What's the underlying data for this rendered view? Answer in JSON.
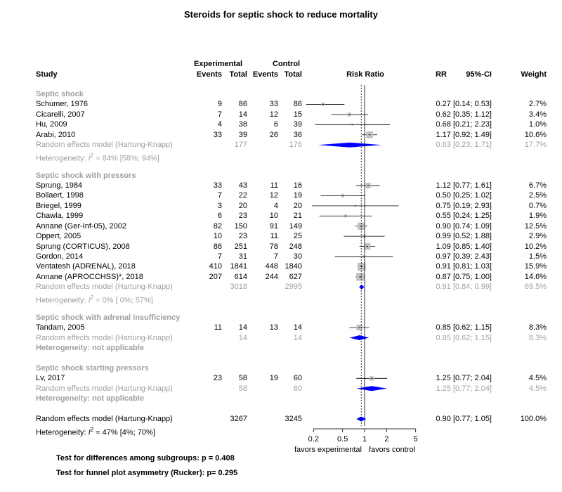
{
  "chart_data": {
    "type": "forest",
    "title": "Steroids for septic shock to reduce mortality",
    "scale": "log",
    "xlim": [
      0.1,
      5
    ],
    "null_value": 1,
    "pooled_value": 0.9,
    "x_ticks": [
      "0.2",
      "0.5",
      "1",
      "2",
      "5"
    ],
    "x_tick_values": [
      0.2,
      0.5,
      1,
      2,
      5
    ],
    "favors_left": "favors experimental",
    "favors_right": "favors control",
    "header": {
      "experimental": "Experimental",
      "control": "Control",
      "study": "Study",
      "events": "Events",
      "total": "Total",
      "risk_ratio": "Risk Ratio",
      "rr": "RR",
      "ci": "95%-CI",
      "weight": "Weight"
    },
    "rows": [
      {
        "kind": "group",
        "label": "Septic shock"
      },
      {
        "kind": "study",
        "label": "Schumer, 1976",
        "ee": "9",
        "et": "86",
        "ce": "33",
        "ct": "86",
        "rr": 0.27,
        "lo": 0.14,
        "hi": 0.53,
        "ci": "0.27 [0.14; 0.53]",
        "w": "2.7%",
        "wv": 2.7
      },
      {
        "kind": "study",
        "label": "Cicarelli, 2007",
        "ee": "7",
        "et": "14",
        "ce": "12",
        "ct": "15",
        "rr": 0.62,
        "lo": 0.35,
        "hi": 1.12,
        "ci": "0.62 [0.35; 1.12]",
        "w": "3.4%",
        "wv": 3.4
      },
      {
        "kind": "study",
        "label": "Hu, 2009",
        "ee": "4",
        "et": "38",
        "ce": "6",
        "ct": "39",
        "rr": 0.68,
        "lo": 0.21,
        "hi": 2.23,
        "ci": "0.68 [0.21; 2.23]",
        "w": "1.0%",
        "wv": 1.0
      },
      {
        "kind": "study",
        "label": "Arabi, 2010",
        "ee": "33",
        "et": "39",
        "ce": "26",
        "ct": "36",
        "rr": 1.17,
        "lo": 0.92,
        "hi": 1.49,
        "ci": "1.17 [0.92; 1.49]",
        "w": "10.6%",
        "wv": 10.6
      },
      {
        "kind": "pooled",
        "label": "Random effects model  (Hartung-Knapp)",
        "et": "177",
        "ct": "176",
        "rr": 0.63,
        "lo": 0.23,
        "hi": 1.71,
        "ci": "0.63 [0.23; 1.71]",
        "w": "17.7%"
      },
      {
        "kind": "het",
        "text_before": "Heterogeneity: ",
        "italic": "I",
        "sup": "2",
        "text_after": " = 84% [58%; 94%]"
      },
      {
        "kind": "blank"
      },
      {
        "kind": "group",
        "label": "Septic shock with pressors"
      },
      {
        "kind": "study",
        "label": "Sprung, 1984",
        "ee": "33",
        "et": "43",
        "ce": "11",
        "ct": "16",
        "rr": 1.12,
        "lo": 0.77,
        "hi": 1.61,
        "ci": "1.12 [0.77; 1.61]",
        "w": "6.7%",
        "wv": 6.7
      },
      {
        "kind": "study",
        "label": "Bollaert, 1998",
        "ee": "7",
        "et": "22",
        "ce": "12",
        "ct": "19",
        "rr": 0.5,
        "lo": 0.25,
        "hi": 1.02,
        "ci": "0.50 [0.25; 1.02]",
        "w": "2.5%",
        "wv": 2.5
      },
      {
        "kind": "study",
        "label": "Briegel, 1999",
        "ee": "3",
        "et": "20",
        "ce": "4",
        "ct": "20",
        "rr": 0.75,
        "lo": 0.19,
        "hi": 2.93,
        "ci": "0.75 [0.19; 2.93]",
        "w": "0.7%",
        "wv": 0.7
      },
      {
        "kind": "study",
        "label": "Chawla, 1999",
        "ee": "6",
        "et": "23",
        "ce": "10",
        "ct": "21",
        "rr": 0.55,
        "lo": 0.24,
        "hi": 1.25,
        "ci": "0.55 [0.24; 1.25]",
        "w": "1.9%",
        "wv": 1.9
      },
      {
        "kind": "study",
        "label": "Annane (Ger-Inf-05), 2002",
        "ee": "82",
        "et": "150",
        "ce": "91",
        "ct": "149",
        "rr": 0.9,
        "lo": 0.74,
        "hi": 1.09,
        "ci": "0.90 [0.74; 1.09]",
        "w": "12.5%",
        "wv": 12.5
      },
      {
        "kind": "study",
        "label": "Oppert, 2005",
        "ee": "10",
        "et": "23",
        "ce": "11",
        "ct": "25",
        "rr": 0.99,
        "lo": 0.52,
        "hi": 1.88,
        "ci": "0.99 [0.52; 1.88]",
        "w": "2.9%",
        "wv": 2.9
      },
      {
        "kind": "study",
        "label": "Sprung (CORTICUS), 2008",
        "ee": "86",
        "et": "251",
        "ce": "78",
        "ct": "248",
        "rr": 1.09,
        "lo": 0.85,
        "hi": 1.4,
        "ci": "1.09 [0.85; 1.40]",
        "w": "10.2%",
        "wv": 10.2
      },
      {
        "kind": "study",
        "label": "Gordon, 2014",
        "ee": "7",
        "et": "31",
        "ce": "7",
        "ct": "30",
        "rr": 0.97,
        "lo": 0.39,
        "hi": 2.43,
        "ci": "0.97 [0.39; 2.43]",
        "w": "1.5%",
        "wv": 1.5
      },
      {
        "kind": "study",
        "label": "Ventatesh  (ADRENAL), 2018",
        "ee": "410",
        "et": "1841",
        "ce": "448",
        "ct": "1840",
        "rr": 0.91,
        "lo": 0.81,
        "hi": 1.03,
        "ci": "0.91 [0.81; 1.03]",
        "w": "15.9%",
        "wv": 15.9
      },
      {
        "kind": "study",
        "label": "Annane (APROCCHSS)*, 2018",
        "ee": "207",
        "et": "614",
        "ce": "244",
        "ct": "627",
        "rr": 0.87,
        "lo": 0.75,
        "hi": 1.0,
        "ci": "0.87 [0.75; 1.00]",
        "w": "14.6%",
        "wv": 14.6
      },
      {
        "kind": "pooled",
        "label": "Random effects model  (Hartung-Knapp)",
        "et": "3018",
        "ct": "2995",
        "rr": 0.91,
        "lo": 0.84,
        "hi": 0.99,
        "ci": "0.91 [0.84; 0.99]",
        "w": "69.5%"
      },
      {
        "kind": "het",
        "text_before": "Heterogeneity: ",
        "italic": "I",
        "sup": "2",
        "text_after": " = 0% [ 0%; 57%]"
      },
      {
        "kind": "blank"
      },
      {
        "kind": "group",
        "label": "Septic shock with adrenal insufficiency"
      },
      {
        "kind": "study",
        "label": "Tandam, 2005",
        "ee": "11",
        "et": "14",
        "ce": "13",
        "ct": "14",
        "rr": 0.85,
        "lo": 0.62,
        "hi": 1.15,
        "ci": "0.85 [0.62; 1.15]",
        "w": "8.3%",
        "wv": 8.3
      },
      {
        "kind": "pooled",
        "label": "Random effects model  (Hartung-Knapp)",
        "et": "14",
        "ct": "14",
        "rr": 0.85,
        "lo": 0.62,
        "hi": 1.15,
        "ci": "0.85 [0.62; 1.15]",
        "w": "8.3%"
      },
      {
        "kind": "hetna",
        "label": "Heterogeneity: not applicable"
      },
      {
        "kind": "blank"
      },
      {
        "kind": "group",
        "label": "Septic shock starting pressors"
      },
      {
        "kind": "study",
        "label": "Lv, 2017",
        "ee": "23",
        "et": "58",
        "ce": "19",
        "ct": "60",
        "rr": 1.25,
        "lo": 0.77,
        "hi": 2.04,
        "ci": "1.25 [0.77; 2.04]",
        "w": "4.5%",
        "wv": 4.5
      },
      {
        "kind": "pooled",
        "label": "Random effects model  (Hartung-Knapp)",
        "et": "58",
        "ct": "60",
        "rr": 1.25,
        "lo": 0.77,
        "hi": 2.04,
        "ci": "1.25 [0.77; 2.04]",
        "w": "4.5%"
      },
      {
        "kind": "hetna",
        "label": "Heterogeneity: not applicable"
      },
      {
        "kind": "blank"
      },
      {
        "kind": "overall",
        "label": "Random effects model  (Hartung-Knapp)",
        "et": "3267",
        "ct": "3245",
        "rr": 0.9,
        "lo": 0.77,
        "hi": 1.05,
        "ci": "0.90 [0.77; 1.05]",
        "w": "100.0%"
      },
      {
        "kind": "hetoverall",
        "text_before": "Heterogeneity: ",
        "italic": "I",
        "sup": "2",
        "text_after": " = 47% [4%; 70%]"
      }
    ],
    "footer": [
      "Test for differences among subgroups: p = 0.408",
      "Test for funnel plot asymmetry (Rucker): p= 0.295"
    ],
    "colors": {
      "diamond_overall": "#0000ff",
      "diamond_subgroup": "#0000ff",
      "study_box": "#c0c0c0",
      "text_gray": "#a0a0a0"
    }
  }
}
